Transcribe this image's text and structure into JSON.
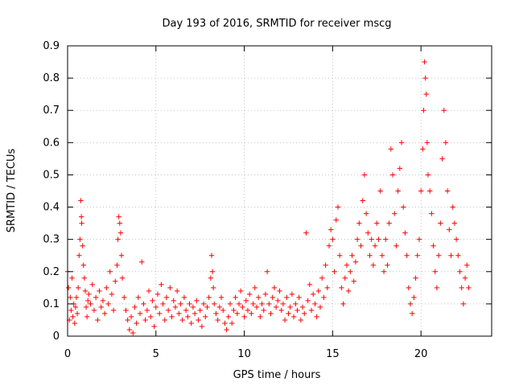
{
  "chart_data": {
    "type": "scatter",
    "title": "Day 193 of 2016, SRMTID for receiver mscg",
    "xlabel": "GPS time / hours",
    "ylabel": "SRMTID / TECUs",
    "xlim": [
      0,
      24
    ],
    "ylim": [
      0,
      0.9
    ],
    "xticks": [
      0,
      5,
      10,
      15,
      20
    ],
    "xtick_labels": [
      "0",
      "5",
      "10",
      "15",
      "20"
    ],
    "yticks": [
      0,
      0.1,
      0.2,
      0.3,
      0.4,
      0.5,
      0.6,
      0.7,
      0.8,
      0.9
    ],
    "ytick_labels": [
      "0",
      "0.1",
      "0.2",
      "0.3",
      "0.4",
      "0.5",
      "0.6",
      "0.7",
      "0.8",
      "0.9"
    ],
    "grid": true,
    "marker": "+",
    "color": "#ff0000",
    "series": [
      {
        "name": "SRMTID",
        "points": [
          [
            0.0,
            0.2
          ],
          [
            0.05,
            0.15
          ],
          [
            0.1,
            0.05
          ],
          [
            0.15,
            0.12
          ],
          [
            0.2,
            0.08
          ],
          [
            0.25,
            0.18
          ],
          [
            0.3,
            0.06
          ],
          [
            0.35,
            0.1
          ],
          [
            0.4,
            0.04
          ],
          [
            0.45,
            0.09
          ],
          [
            0.5,
            0.12
          ],
          [
            0.55,
            0.07
          ],
          [
            0.6,
            0.15
          ],
          [
            0.65,
            0.25
          ],
          [
            0.7,
            0.3
          ],
          [
            0.75,
            0.42
          ],
          [
            0.78,
            0.37
          ],
          [
            0.8,
            0.35
          ],
          [
            0.85,
            0.28
          ],
          [
            0.9,
            0.22
          ],
          [
            0.95,
            0.18
          ],
          [
            1.0,
            0.14
          ],
          [
            1.05,
            0.09
          ],
          [
            1.1,
            0.06
          ],
          [
            1.15,
            0.11
          ],
          [
            1.2,
            0.13
          ],
          [
            1.3,
            0.1
          ],
          [
            1.4,
            0.16
          ],
          [
            1.5,
            0.08
          ],
          [
            1.6,
            0.12
          ],
          [
            1.7,
            0.05
          ],
          [
            1.8,
            0.14
          ],
          [
            1.9,
            0.09
          ],
          [
            2.0,
            0.11
          ],
          [
            2.1,
            0.07
          ],
          [
            2.2,
            0.15
          ],
          [
            2.3,
            0.1
          ],
          [
            2.4,
            0.2
          ],
          [
            2.5,
            0.13
          ],
          [
            2.6,
            0.08
          ],
          [
            2.7,
            0.17
          ],
          [
            2.8,
            0.22
          ],
          [
            2.85,
            0.3
          ],
          [
            2.9,
            0.37
          ],
          [
            2.95,
            0.35
          ],
          [
            3.0,
            0.32
          ],
          [
            3.05,
            0.25
          ],
          [
            3.1,
            0.18
          ],
          [
            3.2,
            0.12
          ],
          [
            3.3,
            0.08
          ],
          [
            3.4,
            0.05
          ],
          [
            3.5,
            0.02
          ],
          [
            3.6,
            0.06
          ],
          [
            3.7,
            0.01
          ],
          [
            3.8,
            0.09
          ],
          [
            3.9,
            0.04
          ],
          [
            4.0,
            0.12
          ],
          [
            4.1,
            0.07
          ],
          [
            4.2,
            0.23
          ],
          [
            4.3,
            0.1
          ],
          [
            4.4,
            0.05
          ],
          [
            4.5,
            0.08
          ],
          [
            4.6,
            0.14
          ],
          [
            4.7,
            0.06
          ],
          [
            4.8,
            0.11
          ],
          [
            4.9,
            0.03
          ],
          [
            5.0,
            0.09
          ],
          [
            5.1,
            0.13
          ],
          [
            5.2,
            0.07
          ],
          [
            5.3,
            0.16
          ],
          [
            5.4,
            0.1
          ],
          [
            5.5,
            0.05
          ],
          [
            5.6,
            0.12
          ],
          [
            5.7,
            0.08
          ],
          [
            5.8,
            0.15
          ],
          [
            5.9,
            0.06
          ],
          [
            6.0,
            0.11
          ],
          [
            6.1,
            0.09
          ],
          [
            6.2,
            0.14
          ],
          [
            6.3,
            0.07
          ],
          [
            6.4,
            0.1
          ],
          [
            6.5,
            0.05
          ],
          [
            6.6,
            0.12
          ],
          [
            6.7,
            0.08
          ],
          [
            6.8,
            0.06
          ],
          [
            6.9,
            0.1
          ],
          [
            7.0,
            0.04
          ],
          [
            7.1,
            0.09
          ],
          [
            7.2,
            0.07
          ],
          [
            7.3,
            0.11
          ],
          [
            7.4,
            0.05
          ],
          [
            7.5,
            0.08
          ],
          [
            7.6,
            0.03
          ],
          [
            7.7,
            0.1
          ],
          [
            7.8,
            0.06
          ],
          [
            7.9,
            0.09
          ],
          [
            8.0,
            0.12
          ],
          [
            8.1,
            0.18
          ],
          [
            8.15,
            0.25
          ],
          [
            8.2,
            0.2
          ],
          [
            8.25,
            0.15
          ],
          [
            8.3,
            0.1
          ],
          [
            8.4,
            0.07
          ],
          [
            8.5,
            0.05
          ],
          [
            8.6,
            0.09
          ],
          [
            8.7,
            0.12
          ],
          [
            8.8,
            0.08
          ],
          [
            8.9,
            0.04
          ],
          [
            9.0,
            0.02
          ],
          [
            9.1,
            0.06
          ],
          [
            9.2,
            0.1
          ],
          [
            9.3,
            0.04
          ],
          [
            9.4,
            0.08
          ],
          [
            9.5,
            0.12
          ],
          [
            9.6,
            0.07
          ],
          [
            9.7,
            0.1
          ],
          [
            9.8,
            0.14
          ],
          [
            9.9,
            0.09
          ],
          [
            10.0,
            0.06
          ],
          [
            10.1,
            0.11
          ],
          [
            10.2,
            0.08
          ],
          [
            10.3,
            0.13
          ],
          [
            10.4,
            0.07
          ],
          [
            10.5,
            0.1
          ],
          [
            10.6,
            0.15
          ],
          [
            10.7,
            0.09
          ],
          [
            10.8,
            0.12
          ],
          [
            10.9,
            0.06
          ],
          [
            11.0,
            0.1
          ],
          [
            11.1,
            0.08
          ],
          [
            11.2,
            0.13
          ],
          [
            11.3,
            0.2
          ],
          [
            11.4,
            0.1
          ],
          [
            11.5,
            0.07
          ],
          [
            11.6,
            0.12
          ],
          [
            11.7,
            0.15
          ],
          [
            11.8,
            0.09
          ],
          [
            11.9,
            0.11
          ],
          [
            12.0,
            0.14
          ],
          [
            12.1,
            0.08
          ],
          [
            12.2,
            0.1
          ],
          [
            12.3,
            0.05
          ],
          [
            12.4,
            0.12
          ],
          [
            12.5,
            0.07
          ],
          [
            12.6,
            0.09
          ],
          [
            12.7,
            0.13
          ],
          [
            12.8,
            0.06
          ],
          [
            12.9,
            0.1
          ],
          [
            13.0,
            0.08
          ],
          [
            13.1,
            0.12
          ],
          [
            13.2,
            0.05
          ],
          [
            13.3,
            0.09
          ],
          [
            13.4,
            0.07
          ],
          [
            13.5,
            0.32
          ],
          [
            13.6,
            0.11
          ],
          [
            13.7,
            0.16
          ],
          [
            13.8,
            0.08
          ],
          [
            13.9,
            0.13
          ],
          [
            14.0,
            0.1
          ],
          [
            14.1,
            0.06
          ],
          [
            14.2,
            0.14
          ],
          [
            14.3,
            0.09
          ],
          [
            14.4,
            0.18
          ],
          [
            14.5,
            0.12
          ],
          [
            14.6,
            0.22
          ],
          [
            14.7,
            0.15
          ],
          [
            14.8,
            0.28
          ],
          [
            14.9,
            0.33
          ],
          [
            15.0,
            0.3
          ],
          [
            15.1,
            0.2
          ],
          [
            15.2,
            0.36
          ],
          [
            15.3,
            0.4
          ],
          [
            15.4,
            0.25
          ],
          [
            15.5,
            0.15
          ],
          [
            15.6,
            0.1
          ],
          [
            15.7,
            0.18
          ],
          [
            15.8,
            0.22
          ],
          [
            15.9,
            0.14
          ],
          [
            16.0,
            0.2
          ],
          [
            16.1,
            0.25
          ],
          [
            16.2,
            0.17
          ],
          [
            16.3,
            0.23
          ],
          [
            16.4,
            0.3
          ],
          [
            16.5,
            0.35
          ],
          [
            16.6,
            0.28
          ],
          [
            16.7,
            0.42
          ],
          [
            16.8,
            0.5
          ],
          [
            16.9,
            0.38
          ],
          [
            17.0,
            0.32
          ],
          [
            17.1,
            0.25
          ],
          [
            17.2,
            0.3
          ],
          [
            17.3,
            0.22
          ],
          [
            17.4,
            0.28
          ],
          [
            17.5,
            0.35
          ],
          [
            17.6,
            0.3
          ],
          [
            17.7,
            0.45
          ],
          [
            17.8,
            0.25
          ],
          [
            17.9,
            0.2
          ],
          [
            18.0,
            0.3
          ],
          [
            18.1,
            0.22
          ],
          [
            18.2,
            0.35
          ],
          [
            18.3,
            0.58
          ],
          [
            18.4,
            0.5
          ],
          [
            18.5,
            0.38
          ],
          [
            18.6,
            0.28
          ],
          [
            18.7,
            0.45
          ],
          [
            18.8,
            0.52
          ],
          [
            18.9,
            0.6
          ],
          [
            19.0,
            0.4
          ],
          [
            19.1,
            0.32
          ],
          [
            19.2,
            0.25
          ],
          [
            19.3,
            0.15
          ],
          [
            19.4,
            0.1
          ],
          [
            19.5,
            0.07
          ],
          [
            19.6,
            0.12
          ],
          [
            19.7,
            0.18
          ],
          [
            19.8,
            0.25
          ],
          [
            19.9,
            0.3
          ],
          [
            20.0,
            0.45
          ],
          [
            20.1,
            0.58
          ],
          [
            20.15,
            0.7
          ],
          [
            20.2,
            0.85
          ],
          [
            20.25,
            0.8
          ],
          [
            20.3,
            0.75
          ],
          [
            20.35,
            0.6
          ],
          [
            20.4,
            0.5
          ],
          [
            20.5,
            0.45
          ],
          [
            20.6,
            0.38
          ],
          [
            20.7,
            0.28
          ],
          [
            20.8,
            0.2
          ],
          [
            20.9,
            0.15
          ],
          [
            21.0,
            0.25
          ],
          [
            21.1,
            0.35
          ],
          [
            21.2,
            0.55
          ],
          [
            21.3,
            0.7
          ],
          [
            21.4,
            0.6
          ],
          [
            21.5,
            0.45
          ],
          [
            21.6,
            0.33
          ],
          [
            21.7,
            0.25
          ],
          [
            21.8,
            0.4
          ],
          [
            21.9,
            0.35
          ],
          [
            22.0,
            0.3
          ],
          [
            22.1,
            0.25
          ],
          [
            22.2,
            0.2
          ],
          [
            22.3,
            0.15
          ],
          [
            22.4,
            0.1
          ],
          [
            22.5,
            0.18
          ],
          [
            22.6,
            0.22
          ],
          [
            22.7,
            0.15
          ]
        ]
      }
    ]
  }
}
